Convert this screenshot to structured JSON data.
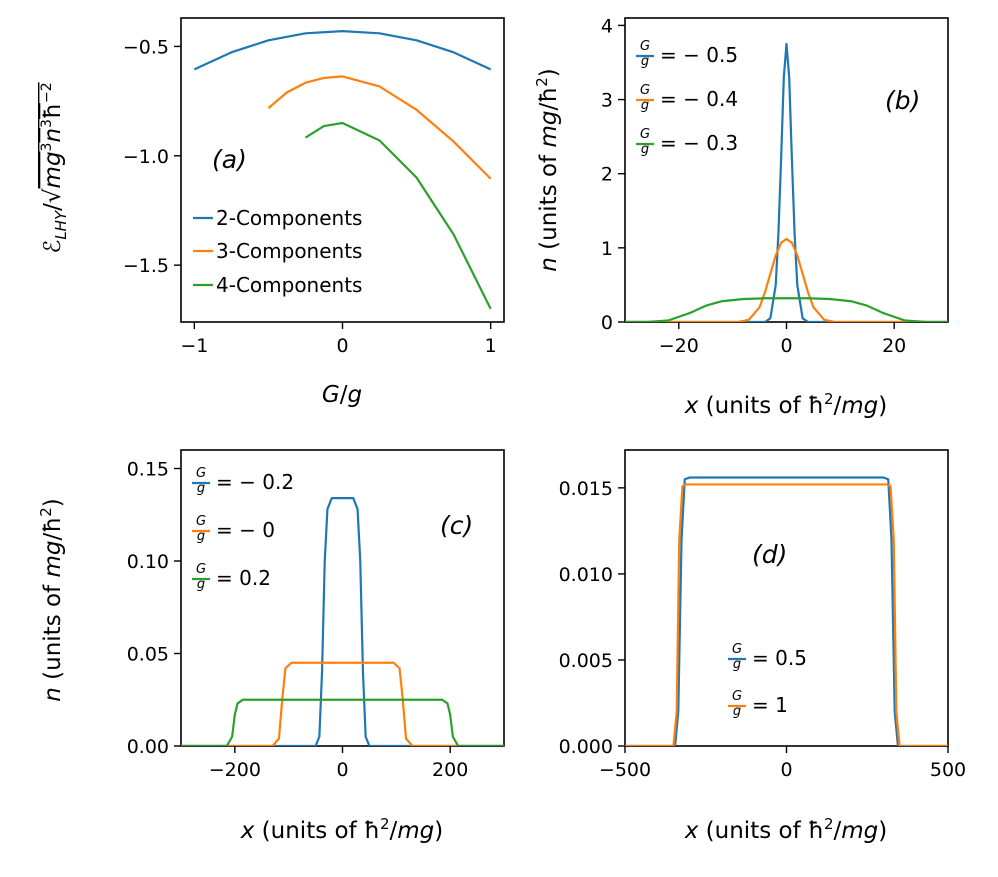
{
  "chart_data": [
    {
      "id": "a",
      "type": "line",
      "panel_label": "(a)",
      "xlabel": "G/g",
      "ylabel": "E_LHY/√(mg³n³ħ⁻²)",
      "xlim": [
        -1.09,
        1.09
      ],
      "ylim": [
        -1.76,
        -0.37
      ],
      "xticks": [
        -1,
        0,
        1
      ],
      "xtick_labels": [
        "−1",
        "0",
        "1"
      ],
      "yticks": [
        -0.5,
        -1.0,
        -1.5
      ],
      "ytick_labels": [
        "−0.5",
        "−1.0",
        "−1.5"
      ],
      "legend_position": "center-left",
      "series": [
        {
          "name": "2-Components",
          "color": "#1f77b4",
          "x": [
            -1.0,
            -0.75,
            -0.5,
            -0.25,
            0.0,
            0.25,
            0.5,
            0.75,
            1.0
          ],
          "y": [
            -0.605,
            -0.527,
            -0.472,
            -0.44,
            -0.43,
            -0.44,
            -0.472,
            -0.527,
            -0.605
          ]
        },
        {
          "name": "3-Components",
          "color": "#ff7f0e",
          "x": [
            -0.5,
            -0.375,
            -0.25,
            -0.125,
            0.0,
            0.25,
            0.5,
            0.75,
            1.0
          ],
          "y": [
            -0.782,
            -0.71,
            -0.666,
            -0.644,
            -0.637,
            -0.683,
            -0.79,
            -0.935,
            -1.105
          ]
        },
        {
          "name": "4-Components",
          "color": "#2ca02c",
          "x": [
            -0.25,
            -0.125,
            0.0,
            0.25,
            0.5,
            0.75,
            1.0
          ],
          "y": [
            -0.917,
            -0.864,
            -0.85,
            -0.93,
            -1.1,
            -1.36,
            -1.7
          ]
        }
      ]
    },
    {
      "id": "b",
      "type": "line",
      "panel_label": "(b)",
      "xlabel": "x (units of ħ²/mg)",
      "ylabel": "n (units of mg/ħ²)",
      "xlim": [
        -30,
        30
      ],
      "ylim": [
        0,
        4.1
      ],
      "xticks": [
        -20,
        0,
        20
      ],
      "xtick_labels": [
        "−20",
        "0",
        "20"
      ],
      "yticks": [
        0,
        1,
        2,
        3,
        4
      ],
      "ytick_labels": [
        "0",
        "1",
        "2",
        "3",
        "4"
      ],
      "legend_position": "top-left",
      "series": [
        {
          "name": "G/g = −0.5",
          "legend_rhs": "= − 0.5",
          "color": "#1f77b4",
          "x": [
            -30,
            -4,
            -3,
            -2,
            -1.5,
            -1,
            -0.5,
            0,
            0.5,
            1,
            1.5,
            2,
            3,
            4,
            30
          ],
          "y": [
            0,
            0,
            0.05,
            0.5,
            1.2,
            2.2,
            3.3,
            3.75,
            3.3,
            2.2,
            1.2,
            0.5,
            0.05,
            0,
            0
          ]
        },
        {
          "name": "G/g = −0.4",
          "legend_rhs": "= − 0.4",
          "color": "#ff7f0e",
          "x": [
            -30,
            -9,
            -7,
            -5,
            -4,
            -3,
            -2,
            -1,
            0,
            1,
            2,
            3,
            4,
            5,
            7,
            9,
            30
          ],
          "y": [
            0,
            0,
            0.03,
            0.2,
            0.4,
            0.65,
            0.9,
            1.07,
            1.12,
            1.07,
            0.9,
            0.65,
            0.4,
            0.2,
            0.03,
            0,
            0
          ]
        },
        {
          "name": "G/g = −0.3",
          "legend_rhs": "= − 0.3",
          "color": "#2ca02c",
          "x": [
            -30,
            -26,
            -22,
            -18,
            -15,
            -12,
            -8,
            -4,
            0,
            4,
            8,
            12,
            15,
            18,
            22,
            26,
            30
          ],
          "y": [
            0,
            0,
            0.02,
            0.12,
            0.22,
            0.28,
            0.31,
            0.32,
            0.32,
            0.32,
            0.31,
            0.28,
            0.22,
            0.12,
            0.02,
            0,
            0
          ]
        }
      ]
    },
    {
      "id": "c",
      "type": "line",
      "panel_label": "(c)",
      "xlabel": "x (units of ħ²/mg)",
      "ylabel": "n (units of mg/ħ²)",
      "xlim": [
        -300,
        300
      ],
      "ylim": [
        0,
        0.16
      ],
      "xticks": [
        -200,
        0,
        200
      ],
      "xtick_labels": [
        "−200",
        "0",
        "200"
      ],
      "yticks": [
        0,
        0.05,
        0.1,
        0.15
      ],
      "ytick_labels": [
        "0.00",
        "0.05",
        "0.10",
        "0.15"
      ],
      "legend_position": "top-left",
      "series": [
        {
          "name": "G/g = −0.2",
          "legend_rhs": "= − 0.2",
          "color": "#1f77b4",
          "x": [
            -300,
            -50,
            -43,
            -38,
            -33,
            -28,
            -20,
            0,
            20,
            28,
            33,
            38,
            43,
            50,
            300
          ],
          "y": [
            0,
            0,
            0.005,
            0.04,
            0.1,
            0.128,
            0.134,
            0.134,
            0.134,
            0.128,
            0.1,
            0.04,
            0.005,
            0,
            0
          ]
        },
        {
          "name": "G/g = −0",
          "legend_rhs": "= − 0",
          "color": "#ff7f0e",
          "x": [
            -300,
            -130,
            -118,
            -112,
            -106,
            -95,
            0,
            95,
            106,
            112,
            118,
            130,
            300
          ],
          "y": [
            0,
            0,
            0.004,
            0.025,
            0.042,
            0.045,
            0.045,
            0.045,
            0.042,
            0.025,
            0.004,
            0,
            0
          ]
        },
        {
          "name": "G/g = 0.2",
          "legend_rhs": "= 0.2",
          "color": "#2ca02c",
          "x": [
            -300,
            -215,
            -205,
            -200,
            -195,
            -185,
            0,
            185,
            195,
            200,
            205,
            215,
            300
          ],
          "y": [
            0,
            0,
            0.005,
            0.017,
            0.023,
            0.025,
            0.025,
            0.025,
            0.023,
            0.017,
            0.005,
            0,
            0
          ]
        }
      ]
    },
    {
      "id": "d",
      "type": "line",
      "panel_label": "(d)",
      "xlabel": "x (units of ħ²/mg)",
      "ylabel": "",
      "xlim": [
        -500,
        500
      ],
      "ylim": [
        0,
        0.0172
      ],
      "xticks": [
        -500,
        0,
        500
      ],
      "xtick_labels": [
        "−500",
        "0",
        "500"
      ],
      "yticks": [
        0,
        0.005,
        0.01,
        0.015
      ],
      "ytick_labels": [
        "0.000",
        "0.005",
        "0.010",
        "0.015"
      ],
      "legend_position": "lower-center",
      "series": [
        {
          "name": "G/g = 0.5",
          "legend_rhs": "= 0.5",
          "color": "#1f77b4",
          "x": [
            -500,
            -345,
            -335,
            -325,
            -315,
            -300,
            0,
            300,
            315,
            325,
            335,
            345,
            500
          ],
          "y": [
            0,
            0,
            0.002,
            0.012,
            0.0155,
            0.0156,
            0.0156,
            0.0156,
            0.0155,
            0.012,
            0.002,
            0,
            0
          ]
        },
        {
          "name": "G/g = 1",
          "legend_rhs": "= 1",
          "color": "#ff7f0e",
          "x": [
            -500,
            -350,
            -340,
            -332,
            -322,
            -310,
            0,
            310,
            322,
            332,
            340,
            350,
            500
          ],
          "y": [
            0,
            0,
            0.002,
            0.012,
            0.0151,
            0.0152,
            0.0152,
            0.0152,
            0.0151,
            0.012,
            0.002,
            0,
            0
          ]
        }
      ]
    }
  ]
}
